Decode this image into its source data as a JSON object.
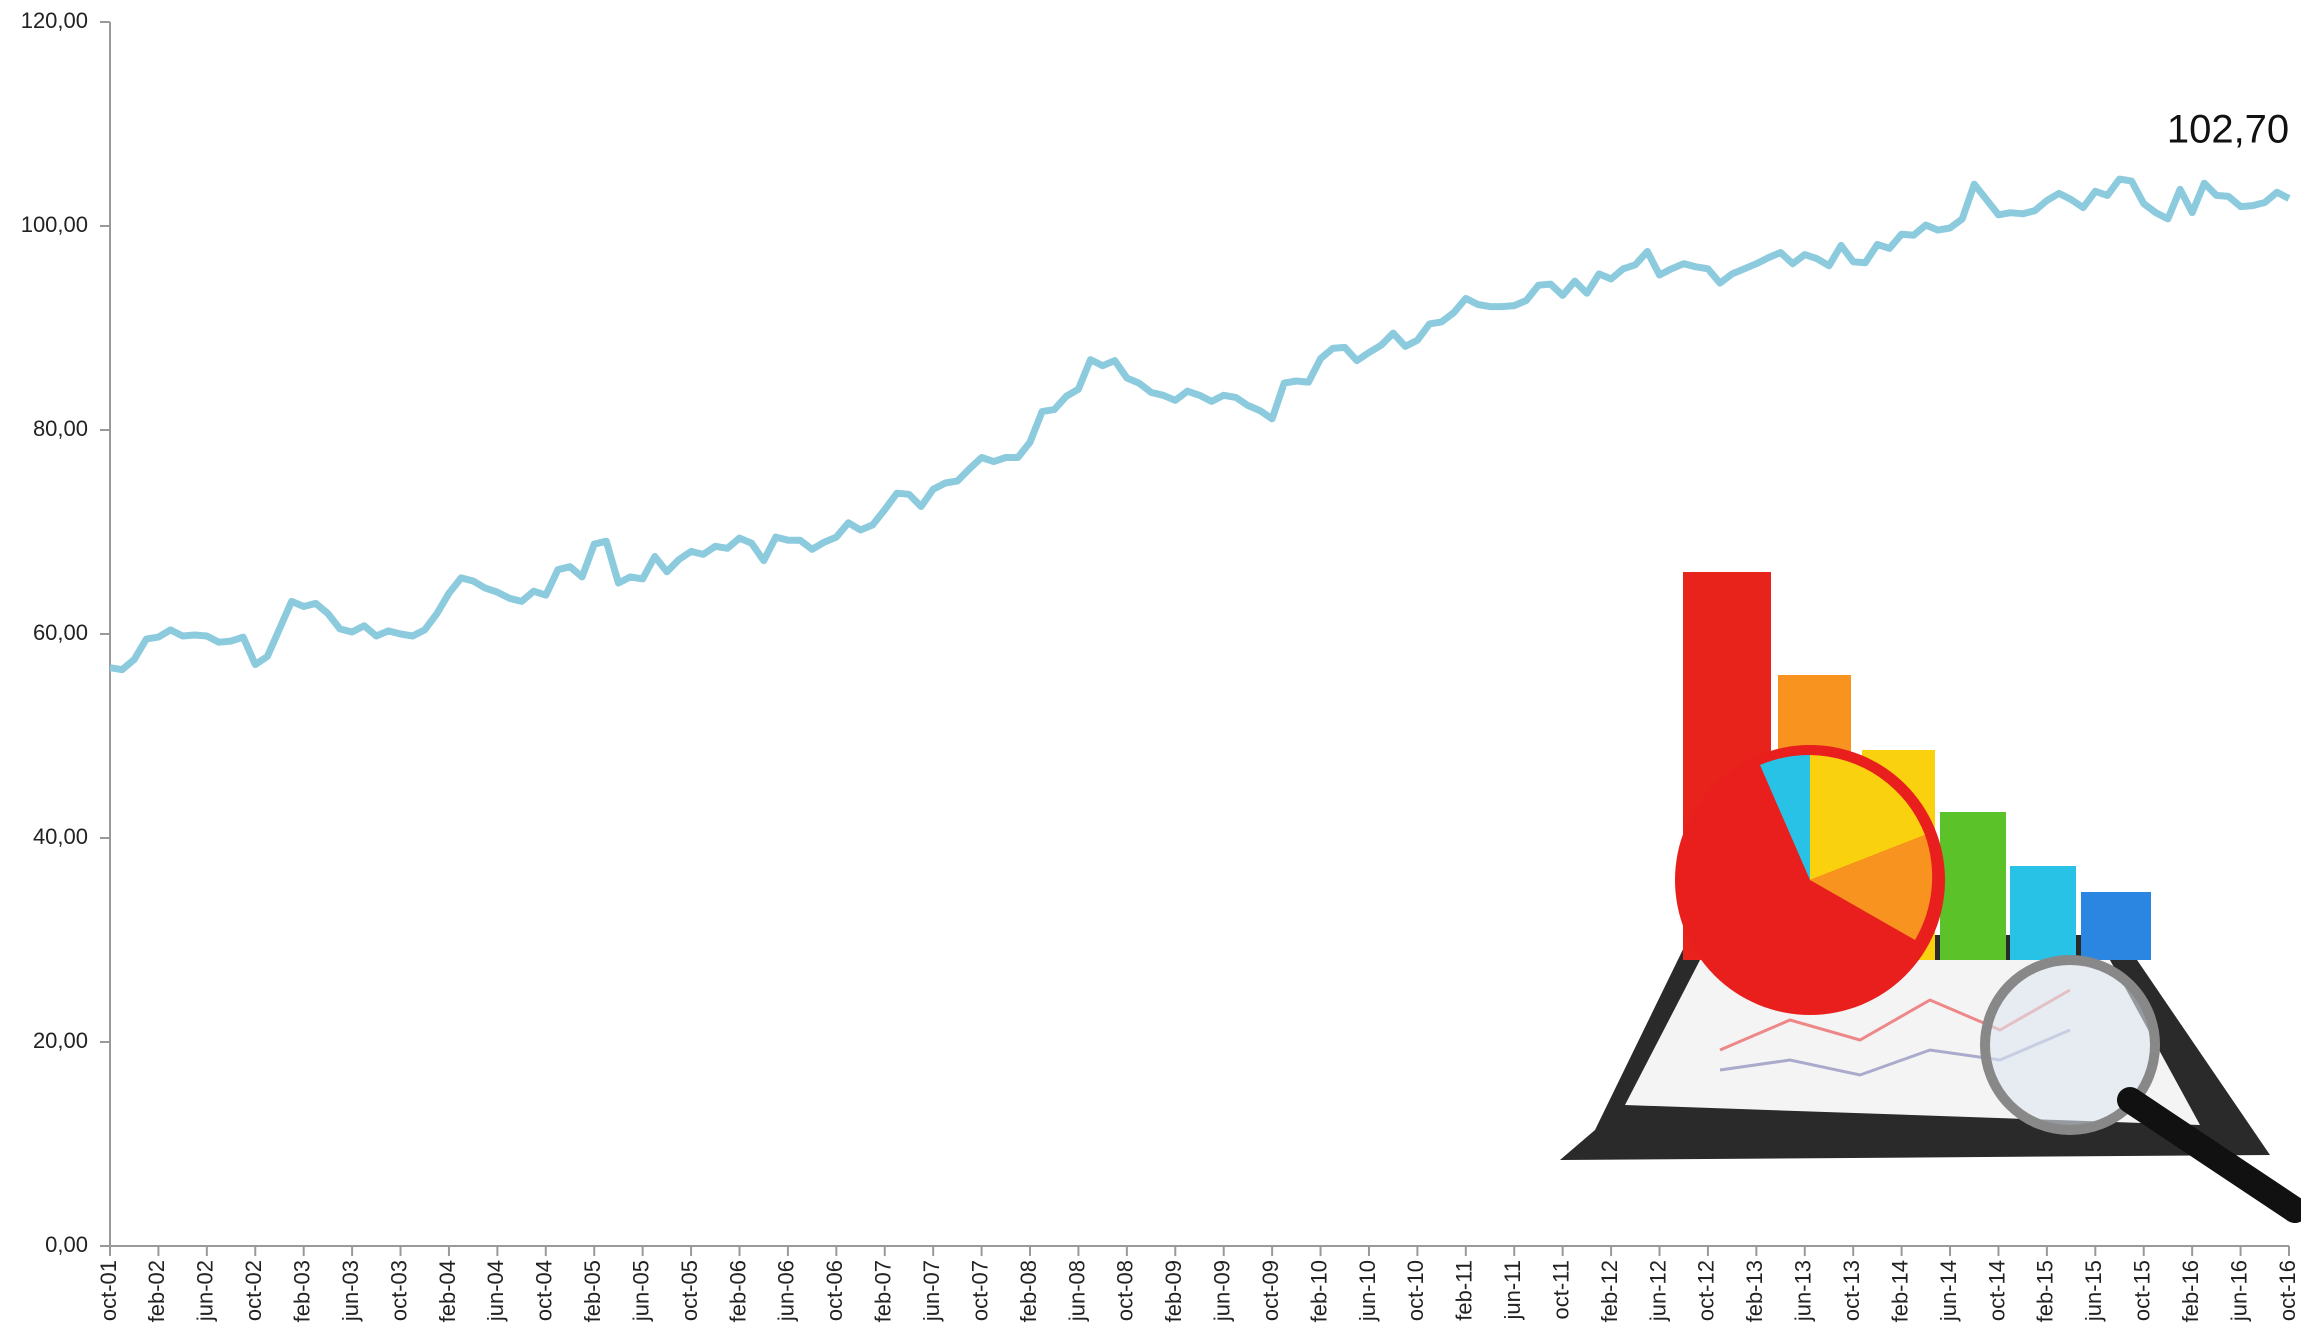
{
  "chart_data": {
    "type": "line",
    "annotation": "102,70",
    "categories": [
      "oct-01",
      null,
      null,
      null,
      "feb-02",
      null,
      null,
      null,
      "jun-02",
      null,
      null,
      null,
      "oct-02",
      null,
      null,
      null,
      "feb-03",
      null,
      null,
      null,
      "jun-03",
      null,
      null,
      null,
      "oct-03",
      null,
      null,
      null,
      "feb-04",
      null,
      null,
      null,
      "jun-04",
      null,
      null,
      null,
      "oct-04",
      null,
      null,
      null,
      "feb-05",
      null,
      null,
      null,
      "jun-05",
      null,
      null,
      null,
      "oct-05",
      null,
      null,
      null,
      "feb-06",
      null,
      null,
      null,
      "jun-06",
      null,
      null,
      null,
      "oct-06",
      null,
      null,
      null,
      "feb-07",
      null,
      null,
      null,
      "jun-07",
      null,
      null,
      null,
      "oct-07",
      null,
      null,
      null,
      "feb-08",
      null,
      null,
      null,
      "jun-08",
      null,
      null,
      null,
      "oct-08",
      null,
      null,
      null,
      "feb-09",
      null,
      null,
      null,
      "jun-09",
      null,
      null,
      null,
      "oct-09",
      null,
      null,
      null,
      "feb-10",
      null,
      null,
      null,
      "jun-10",
      null,
      null,
      null,
      "oct-10",
      null,
      null,
      null,
      "feb-11",
      null,
      null,
      null,
      "jun-11",
      null,
      null,
      null,
      "oct-11",
      null,
      null,
      null,
      "feb-12",
      null,
      null,
      null,
      "jun-12",
      null,
      null,
      null,
      "oct-12",
      null,
      null,
      null,
      "feb-13",
      null,
      null,
      null,
      "jun-13",
      null,
      null,
      null,
      "oct-13",
      null,
      null,
      null,
      "feb-14",
      null,
      null,
      null,
      "jun-14",
      null,
      null,
      null,
      "oct-14",
      null,
      null,
      null,
      "feb-15",
      null,
      null,
      null,
      "jun-15",
      null,
      null,
      null,
      "oct-15",
      null,
      null,
      null,
      "feb-16",
      null,
      null,
      null,
      "jun-16",
      null,
      null,
      null,
      "oct-16"
    ],
    "series": [
      {
        "color": "#8ccbde",
        "values": [
          56.7,
          56.5,
          57.5,
          59.5,
          59.7,
          60.4,
          59.8,
          59.9,
          59.8,
          59.2,
          59.3,
          59.7,
          57.0,
          57.8,
          60.5,
          63.2,
          62.7,
          63.0,
          62.0,
          60.5,
          60.2,
          60.8,
          59.8,
          60.3,
          60.0,
          59.8,
          60.4,
          62.0,
          64.0,
          65.5,
          65.2,
          64.5,
          64.1,
          63.5,
          63.2,
          64.2,
          63.8,
          66.3,
          66.6,
          65.6,
          68.8,
          69.1,
          65.0,
          65.6,
          65.4,
          67.6,
          66.1,
          67.3,
          68.1,
          67.8,
          68.6,
          68.4,
          69.4,
          68.9,
          67.2,
          69.5,
          69.2,
          69.2,
          68.3,
          69.0,
          69.5,
          70.9,
          70.2,
          70.7,
          72.2,
          73.8,
          73.7,
          72.5,
          74.2,
          74.8,
          75.0,
          76.2,
          77.3,
          76.9,
          77.3,
          77.3,
          78.8,
          81.8,
          82.0,
          83.3,
          84.0,
          86.9,
          86.3,
          86.8,
          85.1,
          84.6,
          83.7,
          83.4,
          82.9,
          83.8,
          83.4,
          82.8,
          83.4,
          83.2,
          82.4,
          81.9,
          81.1,
          84.6,
          84.8,
          84.7,
          87.0,
          88.0,
          88.1,
          86.8,
          87.6,
          88.3,
          89.5,
          88.2,
          88.8,
          90.4,
          90.6,
          91.5,
          92.9,
          92.3,
          92.1,
          92.1,
          92.2,
          92.7,
          94.2,
          94.3,
          93.2,
          94.6,
          93.4,
          95.3,
          94.8,
          95.8,
          96.2,
          97.5,
          95.2,
          95.8,
          96.3,
          96.0,
          95.8,
          94.4,
          95.3,
          95.8,
          96.3,
          96.9,
          97.4,
          96.3,
          97.2,
          96.8,
          96.1,
          98.1,
          96.5,
          96.4,
          98.2,
          97.8,
          99.2,
          99.1,
          100.1,
          99.6,
          99.8,
          100.7,
          104.1,
          102.6,
          101.1,
          101.3,
          101.2,
          101.5,
          102.5,
          103.2,
          102.6,
          101.8,
          103.4,
          103.0,
          104.6,
          104.4,
          102.2,
          101.3,
          100.7,
          103.6,
          101.3,
          104.2,
          103.0,
          102.9,
          101.9,
          102.0,
          102.3,
          103.3,
          102.7
        ]
      }
    ],
    "ylim": [
      0,
      120
    ],
    "yticks": [
      {
        "value": 0,
        "label": "0,00"
      },
      {
        "value": 20,
        "label": "20,00"
      },
      {
        "value": 40,
        "label": "40,00"
      },
      {
        "value": 60,
        "label": "60,00"
      },
      {
        "value": 80,
        "label": "80,00"
      },
      {
        "value": 100,
        "label": "100,00"
      },
      {
        "value": 120,
        "label": "120,00"
      }
    ],
    "grid": false
  }
}
